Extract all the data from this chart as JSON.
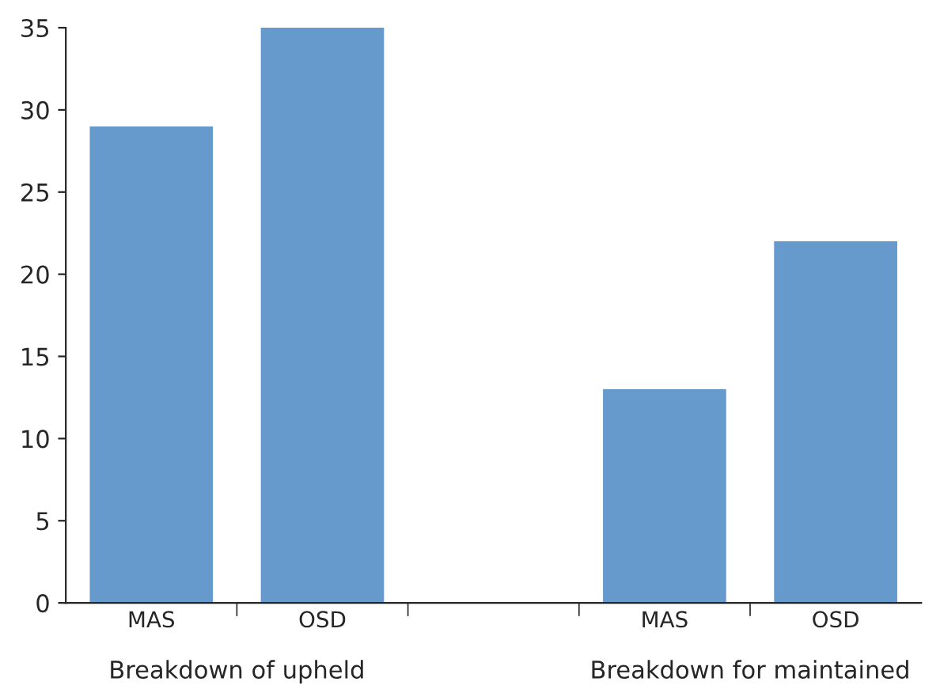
{
  "chart_data": {
    "type": "bar",
    "categories": [
      "MAS",
      "OSD",
      null,
      "MAS",
      "OSD"
    ],
    "values": [
      29,
      35,
      null,
      13,
      22
    ],
    "color": "#6699cc",
    "ylim": [
      0,
      35
    ],
    "yticks": [
      0,
      5,
      10,
      15,
      20,
      25,
      30,
      35
    ],
    "annotations": [
      "Breakdown of upheld",
      "Breakdown for maintained"
    ],
    "grid": false,
    "legend": false
  }
}
